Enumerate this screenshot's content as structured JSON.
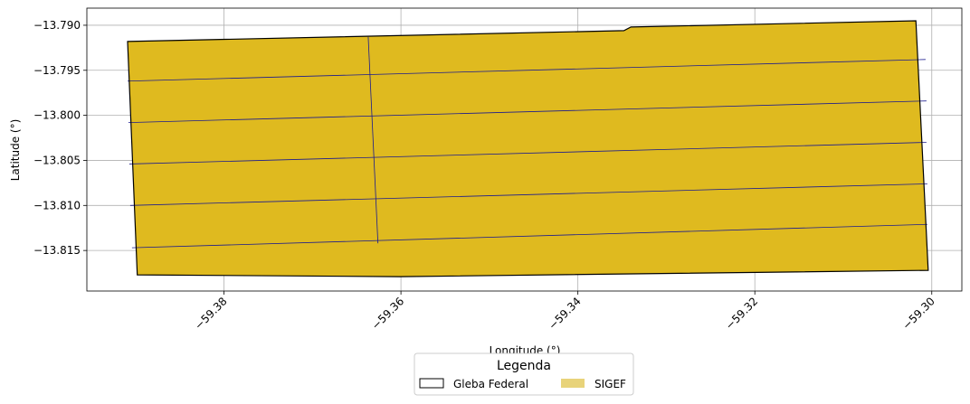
{
  "chart_data": {
    "type": "map",
    "xlabel": "Longitude (°)",
    "ylabel": "Latitude (°)",
    "xlim": [
      -59.3955,
      -59.2966
    ],
    "ylim": [
      -13.8195,
      -13.7881
    ],
    "grid": true,
    "x_ticks": [
      {
        "value": -59.38,
        "label": "−59.38"
      },
      {
        "value": -59.36,
        "label": "−59.36"
      },
      {
        "value": -59.34,
        "label": "−59.34"
      },
      {
        "value": -59.32,
        "label": "−59.32"
      },
      {
        "value": -59.3,
        "label": "−59.30"
      }
    ],
    "y_ticks": [
      {
        "value": -13.79,
        "label": "−13.790"
      },
      {
        "value": -13.795,
        "label": "−13.795"
      },
      {
        "value": -13.8,
        "label": "−13.800"
      },
      {
        "value": -13.805,
        "label": "−13.805"
      },
      {
        "value": -13.81,
        "label": "−13.810"
      },
      {
        "value": -13.815,
        "label": "−13.815"
      }
    ],
    "gleba_federal": {
      "name": "Gleba Federal",
      "outline": [
        [
          -59.3909,
          -13.7918
        ],
        [
          -59.3348,
          -13.7906
        ],
        [
          -59.334,
          -13.7902
        ],
        [
          -59.3018,
          -13.7895
        ],
        [
          -59.3004,
          -13.8172
        ],
        [
          -59.3601,
          -13.8179
        ],
        [
          -59.3898,
          -13.8177
        ]
      ]
    },
    "sigef": {
      "name": "SIGEF",
      "fill": "#DFBA1F",
      "edge": "#1B1B8E",
      "division_lines": [
        [
          [
            -59.3909,
            -13.7962
          ],
          [
            -59.3007,
            -13.7938
          ]
        ],
        [
          [
            -59.3908,
            -13.8008
          ],
          [
            -59.3006,
            -13.7984
          ]
        ],
        [
          [
            -59.3907,
            -13.8054
          ],
          [
            -59.3006,
            -13.803
          ]
        ],
        [
          [
            -59.3906,
            -13.81
          ],
          [
            -59.3005,
            -13.8076
          ]
        ],
        [
          [
            -59.3904,
            -13.8147
          ],
          [
            -59.3005,
            -13.8121
          ]
        ],
        [
          [
            -59.3637,
            -13.7913
          ],
          [
            -59.3626,
            -13.8142
          ]
        ]
      ]
    },
    "legend": {
      "title": "Legenda",
      "position": "below",
      "entries": [
        {
          "label": "Gleba Federal",
          "style": "outline"
        },
        {
          "label": "SIGEF",
          "style": "fill",
          "color": "#E8D37A"
        }
      ]
    }
  }
}
